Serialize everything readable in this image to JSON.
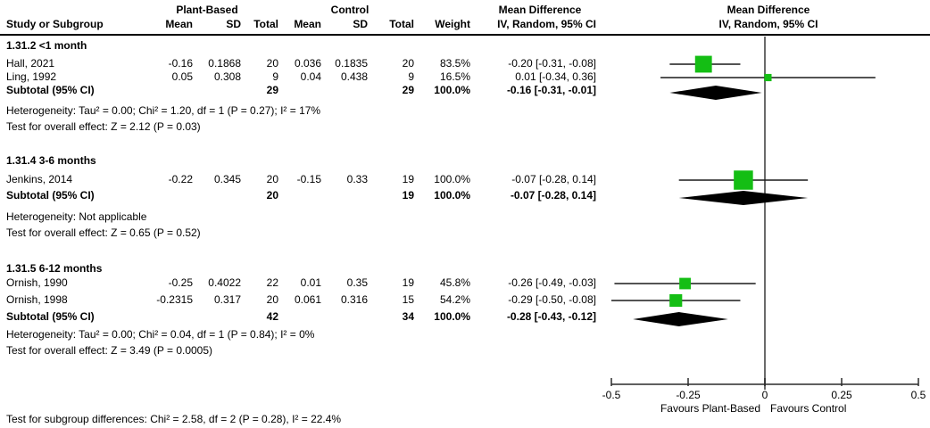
{
  "header": {
    "study_col": "Study or Subgroup",
    "exp_group": "Plant-Based",
    "ctrl_group": "Control",
    "cols": [
      "Mean",
      "SD",
      "Total",
      "Mean",
      "SD",
      "Total",
      "Weight"
    ],
    "effect_title": "Mean Difference",
    "effect_subtitle": "IV, Random, 95% CI",
    "plot_title": "Mean Difference",
    "plot_subtitle": "IV, Random, 95% CI"
  },
  "chart_data": {
    "type": "forest",
    "effect_measure": "Mean Difference (IV, Random, 95% CI)",
    "axis": {
      "xlim": [
        -0.5,
        0.5
      ],
      "ticks": [
        -0.5,
        -0.25,
        0,
        0.25,
        0.5
      ],
      "tick_labels": [
        "-0.5",
        "-0.25",
        "0",
        "0.25",
        "0.5"
      ],
      "favours_left": "Favours Plant-Based",
      "favours_right": "Favours Control",
      "zero_line": 0
    },
    "subgroups": [
      {
        "title": "1.31.2 <1 month",
        "studies": [
          {
            "name": "Hall, 2021",
            "mean1": "-0.16",
            "sd1": "0.1868",
            "total1": "20",
            "mean2": "0.036",
            "sd2": "0.1835",
            "total2": "20",
            "weight": "83.5%",
            "weight_pct": 83.5,
            "ci_label": "-0.20 [-0.31, -0.08]",
            "md": -0.2,
            "lo": -0.31,
            "hi": -0.08
          },
          {
            "name": "Ling, 1992",
            "mean1": "0.05",
            "sd1": "0.308",
            "total1": "9",
            "mean2": "0.04",
            "sd2": "0.438",
            "total2": "9",
            "weight": "16.5%",
            "weight_pct": 16.5,
            "ci_label": "0.01 [-0.34, 0.36]",
            "md": 0.01,
            "lo": -0.34,
            "hi": 0.36
          }
        ],
        "subtotal": {
          "label": "Subtotal (95% CI)",
          "total1": "29",
          "total2": "29",
          "weight": "100.0%",
          "ci_label": "-0.16 [-0.31, -0.01]",
          "md": -0.16,
          "lo": -0.31,
          "hi": -0.01
        },
        "heterogeneity": "Heterogeneity: Tau² = 0.00; Chi² = 1.20, df = 1 (P = 0.27); I² = 17%",
        "overall_test": "Test for overall effect: Z = 2.12 (P = 0.03)"
      },
      {
        "title": "1.31.4 3-6 months",
        "studies": [
          {
            "name": "Jenkins, 2014",
            "mean1": "-0.22",
            "sd1": "0.345",
            "total1": "20",
            "mean2": "-0.15",
            "sd2": "0.33",
            "total2": "19",
            "weight": "100.0%",
            "weight_pct": 100.0,
            "ci_label": "-0.07 [-0.28, 0.14]",
            "md": -0.07,
            "lo": -0.28,
            "hi": 0.14
          }
        ],
        "subtotal": {
          "label": "Subtotal (95% CI)",
          "total1": "20",
          "total2": "19",
          "weight": "100.0%",
          "ci_label": "-0.07 [-0.28, 0.14]",
          "md": -0.07,
          "lo": -0.28,
          "hi": 0.14
        },
        "heterogeneity": "Heterogeneity: Not applicable",
        "overall_test": "Test for overall effect: Z = 0.65 (P = 0.52)"
      },
      {
        "title": "1.31.5 6-12 months",
        "studies": [
          {
            "name": "Ornish, 1990",
            "mean1": "-0.25",
            "sd1": "0.4022",
            "total1": "22",
            "mean2": "0.01",
            "sd2": "0.35",
            "total2": "19",
            "weight": "45.8%",
            "weight_pct": 45.8,
            "ci_label": "-0.26 [-0.49, -0.03]",
            "md": -0.26,
            "lo": -0.49,
            "hi": -0.03
          },
          {
            "name": "Ornish, 1998",
            "mean1": "-0.2315",
            "sd1": "0.317",
            "total1": "20",
            "mean2": "0.061",
            "sd2": "0.316",
            "total2": "15",
            "weight": "54.2%",
            "weight_pct": 54.2,
            "ci_label": "-0.29 [-0.50, -0.08]",
            "md": -0.29,
            "lo": -0.5,
            "hi": -0.08
          }
        ],
        "subtotal": {
          "label": "Subtotal (95% CI)",
          "total1": "42",
          "total2": "34",
          "weight": "100.0%",
          "ci_label": "-0.28 [-0.43, -0.12]",
          "md": -0.28,
          "lo": -0.43,
          "hi": -0.12
        },
        "heterogeneity": "Heterogeneity: Tau² = 0.00; Chi² = 0.04, df = 1 (P = 0.84); I² = 0%",
        "overall_test": "Test for overall effect: Z = 3.49 (P = 0.0005)"
      }
    ]
  },
  "footer": {
    "subgroup_test": "Test for subgroup differences: Chi² = 2.58, df = 2 (P = 0.28), I² = 22.4%"
  },
  "colors": {
    "square": "#14be14",
    "diamond": "#000000",
    "ci_line": "#1a1a1a",
    "zero_line": "#6b6b6b",
    "axis": "#2a2a2a",
    "text": "#000000"
  }
}
